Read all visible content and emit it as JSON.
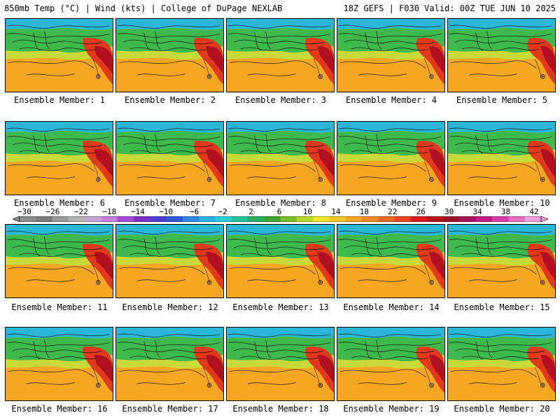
{
  "header": {
    "title": "850mb Temp (°C) | Wind (kts) | College of DuPage NEXLAB",
    "run_info": "18Z GEFS | F030 Valid: 00Z TUE JUN 10 2025"
  },
  "members": [
    {
      "label": "Ensemble Member: 1"
    },
    {
      "label": "Ensemble Member: 2"
    },
    {
      "label": "Ensemble Member: 3"
    },
    {
      "label": "Ensemble Member: 4"
    },
    {
      "label": "Ensemble Member: 5"
    },
    {
      "label": "Ensemble Member: 6"
    },
    {
      "label": "Ensemble Member: 7"
    },
    {
      "label": "Ensemble Member: 8"
    },
    {
      "label": "Ensemble Member: 9"
    },
    {
      "label": "Ensemble Member: 10"
    },
    {
      "label": "Ensemble Member: 11"
    },
    {
      "label": "Ensemble Member: 12"
    },
    {
      "label": "Ensemble Member: 13"
    },
    {
      "label": "Ensemble Member: 14"
    },
    {
      "label": "Ensemble Member: 15"
    },
    {
      "label": "Ensemble Member: 16"
    },
    {
      "label": "Ensemble Member: 17"
    },
    {
      "label": "Ensemble Member: 18"
    },
    {
      "label": "Ensemble Member: 19"
    },
    {
      "label": "Ensemble Member: 20"
    }
  ],
  "colorbar": {
    "labels": [
      "−30",
      "−26",
      "−22",
      "−18",
      "−14",
      "−10",
      "−6",
      "−2",
      "2",
      "6",
      "10",
      "14",
      "18",
      "22",
      "26",
      "30",
      "34",
      "38",
      "42"
    ],
    "colors": [
      "#8c8c8c",
      "#7a7a7a",
      "#9a9a9a",
      "#b4b4b4",
      "#c9a3d6",
      "#c77ee0",
      "#a64cd4",
      "#7a2fc4",
      "#4b3fcf",
      "#2f5bd9",
      "#2e86e6",
      "#29b0ea",
      "#29cfd6",
      "#27c39a",
      "#27b060",
      "#3ea135",
      "#7cbf2a",
      "#b8d62a",
      "#f0e92c",
      "#f7c722",
      "#f5a623",
      "#f28a22",
      "#ee6a20",
      "#e8421e",
      "#d61c1c",
      "#b51418",
      "#9c0f2a",
      "#a6125c",
      "#c21d86",
      "#d93ca9",
      "#e66ec4",
      "#f1a1dc"
    ]
  },
  "map_colors": {
    "cold": "#2bb5d6",
    "cool": "#3fb94e",
    "mild": "#c8d93a",
    "warm": "#f5a623",
    "hot": "#e03a1e",
    "very_hot": "#b01020"
  }
}
